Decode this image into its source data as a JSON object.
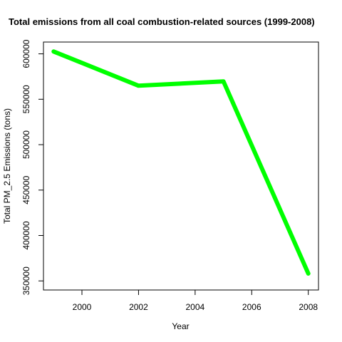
{
  "chart_data": {
    "type": "line",
    "title": "Total emissions from all coal combustion-related sources (1999-2008)",
    "xlabel": "Year",
    "ylabel": "Total PM_2.5 Emissions (tons)",
    "x": [
      1999,
      2002,
      2005,
      2008
    ],
    "series": [
      {
        "values": [
          602600,
          564900,
          569700,
          358100
        ]
      }
    ],
    "xlim": [
      1998.64,
      2008.36
    ],
    "ylim": [
      340000,
      613000
    ],
    "x_ticks": [
      2000,
      2002,
      2004,
      2006,
      2008
    ],
    "y_ticks": [
      350000,
      400000,
      450000,
      500000,
      550000,
      600000
    ],
    "x_tick_labels": [
      "2000",
      "2002",
      "2004",
      "2006",
      "2008"
    ],
    "y_tick_labels": [
      "350000",
      "400000",
      "450000",
      "500000",
      "550000",
      "600000"
    ],
    "line_color": "#00ff00",
    "grid": false
  }
}
